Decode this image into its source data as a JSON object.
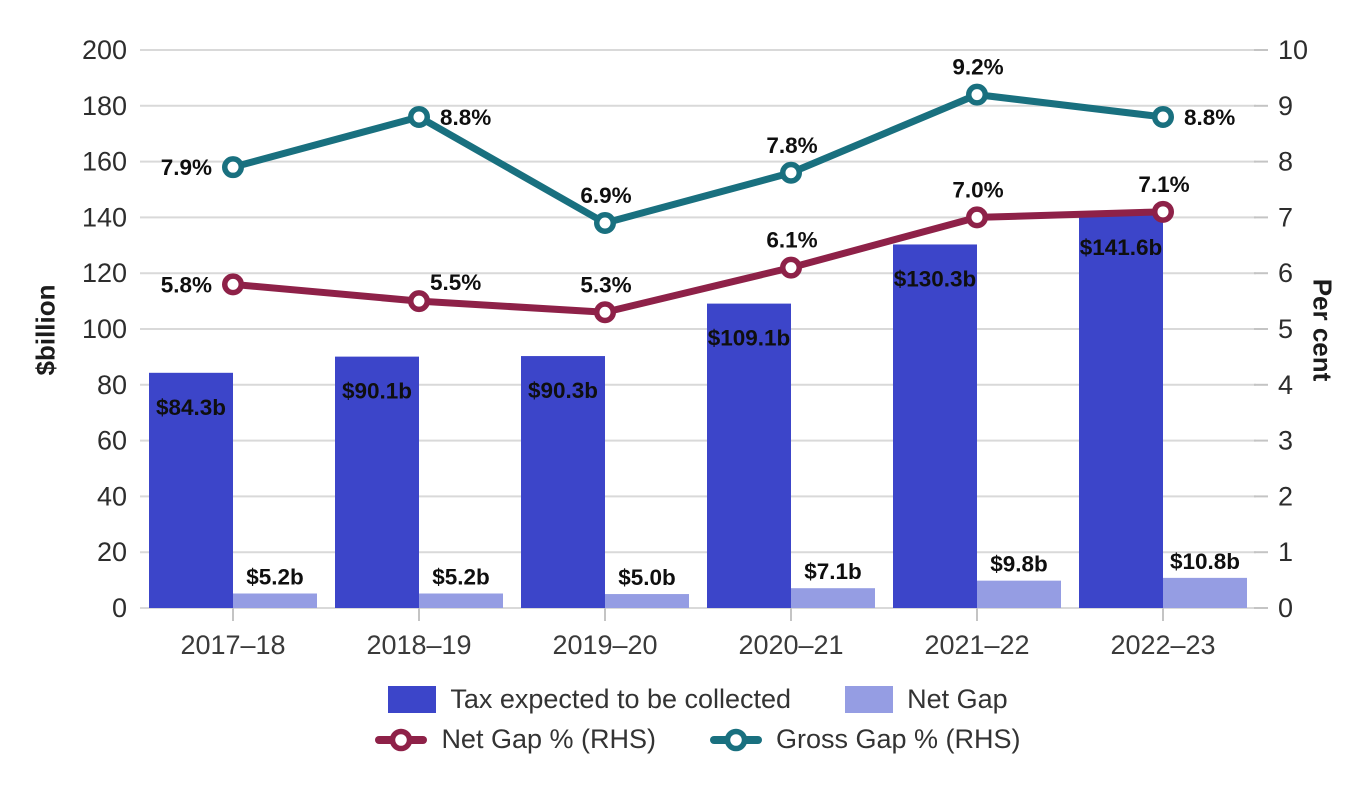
{
  "axes": {
    "left_title": "$billion",
    "right_title": "Per cent",
    "left_ticks": [
      0,
      20,
      40,
      60,
      80,
      100,
      120,
      140,
      160,
      180,
      200
    ],
    "right_ticks": [
      0,
      1,
      2,
      3,
      4,
      5,
      6,
      7,
      8,
      9,
      10
    ],
    "left_range": [
      0,
      200
    ],
    "right_range": [
      0,
      10
    ]
  },
  "chart_data": {
    "type": "bar+line combo",
    "categories": [
      "2017–18",
      "2018–19",
      "2019–20",
      "2020–21",
      "2021–22",
      "2022–23"
    ],
    "series": [
      {
        "name": "Tax expected to be collected",
        "type": "bar",
        "axis": "left",
        "color": "#3c45c9",
        "values": [
          84.3,
          90.1,
          90.3,
          109.1,
          130.3,
          141.6
        ],
        "labels": [
          "$84.3b",
          "$90.1b",
          "$90.3b",
          "$109.1b",
          "$130.3b",
          "$141.6b"
        ],
        "label_color": "#ffffff",
        "label_inside": true
      },
      {
        "name": "Net Gap",
        "type": "bar",
        "axis": "left",
        "color": "#959de3",
        "values": [
          5.2,
          5.2,
          5.0,
          7.1,
          9.8,
          10.8
        ],
        "labels": [
          "$5.2b",
          "$5.2b",
          "$5.0b",
          "$7.1b",
          "$9.8b",
          "$10.8b"
        ],
        "label_color": "#0f0f0f",
        "label_inside": false
      },
      {
        "name": "Net Gap % (RHS)",
        "type": "line",
        "axis": "right",
        "color": "#8e2148",
        "values": [
          5.8,
          5.5,
          5.3,
          6.1,
          7.0,
          7.1
        ],
        "labels": [
          "5.8%",
          "5.5%",
          "5.3%",
          "6.1%",
          "7.0%",
          "7.1%"
        ],
        "label_pos": [
          "left",
          "topright",
          "top",
          "top",
          "top",
          "top"
        ]
      },
      {
        "name": "Gross Gap % (RHS)",
        "type": "line",
        "axis": "right",
        "color": "#19707f",
        "values": [
          7.9,
          8.8,
          6.9,
          7.8,
          9.2,
          8.8
        ],
        "labels": [
          "7.9%",
          "8.8%",
          "6.9%",
          "7.8%",
          "9.2%",
          "8.8%"
        ],
        "label_pos": [
          "left",
          "right",
          "top",
          "top",
          "top",
          "right"
        ]
      }
    ],
    "grid": true,
    "legend_position": "bottom",
    "ylabel_left": "$billion",
    "ylabel_right": "Per cent"
  },
  "legend": {
    "items": [
      {
        "label": "Tax expected to be collected",
        "swatch": "bar",
        "color": "#3c45c9"
      },
      {
        "label": "Net Gap",
        "swatch": "bar",
        "color": "#959de3"
      },
      {
        "label": "Net Gap % (RHS)",
        "swatch": "line",
        "color": "#8e2148"
      },
      {
        "label": "Gross Gap % (RHS)",
        "swatch": "line",
        "color": "#19707f"
      }
    ]
  },
  "colors": {
    "gridline": "#d9d9d9",
    "tick_mark": "#c4c4c4",
    "axis_text": "#2d2d2d",
    "x_axis_text": "#3a3a3a",
    "data_label_text": "#0f0f0f",
    "background": "#ffffff"
  }
}
